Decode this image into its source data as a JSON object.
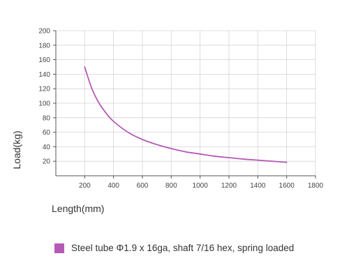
{
  "chart_data": {
    "type": "line",
    "xlabel": "Length(mm)",
    "ylabel": "Load(kg)",
    "xlim": [
      0,
      1800
    ],
    "ylim": [
      0,
      200
    ],
    "x_ticks": [
      200,
      400,
      600,
      800,
      1000,
      1200,
      1400,
      1600,
      1800
    ],
    "y_ticks": [
      20,
      40,
      60,
      80,
      100,
      120,
      140,
      160,
      180,
      200
    ],
    "grid": true,
    "legend_position": "bottom",
    "series": [
      {
        "name": "Steel tube Φ1.9 x 16ga, shaft 7/16 hex, spring loaded",
        "color": "#b55ab5",
        "x": [
          200,
          250,
          300,
          350,
          400,
          500,
          600,
          700,
          800,
          900,
          1000,
          1100,
          1200,
          1300,
          1400,
          1500,
          1600
        ],
        "y": [
          150,
          120,
          100,
          86,
          75,
          60,
          50,
          43,
          37.5,
          33,
          30,
          27,
          25,
          23,
          21.5,
          20,
          18.5
        ]
      }
    ]
  }
}
